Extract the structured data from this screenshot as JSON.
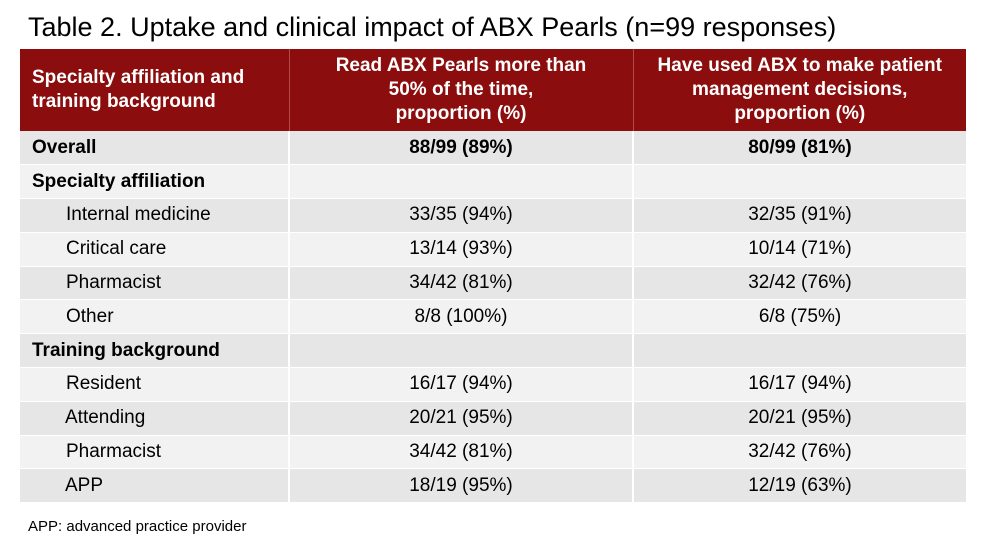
{
  "title": "Table 2. Uptake and clinical impact of ABX Pearls (n=99 responses)",
  "table": {
    "header": {
      "col1": [
        "Specialty affiliation and",
        "training background"
      ],
      "col2": [
        "Read ABX Pearls more than",
        "50% of the time,",
        "proportion (%)"
      ],
      "col3": [
        "Have used ABX to make patient",
        "management decisions,",
        "proportion (%)"
      ]
    },
    "rows": [
      {
        "label": "Overall",
        "read": "88/99 (89%)",
        "used": "80/99 (81%)"
      },
      {
        "label": "Specialty affiliation",
        "read": "",
        "used": ""
      },
      {
        "label": "Internal medicine",
        "read": "33/35 (94%)",
        "used": "32/35 (91%)"
      },
      {
        "label": "Critical care",
        "read": "13/14 (93%)",
        "used": "10/14 (71%)"
      },
      {
        "label": "Pharmacist",
        "read": "34/42 (81%)",
        "used": "32/42 (76%)"
      },
      {
        "label": "Other",
        "read": "8/8 (100%)",
        "used": "6/8 (75%)"
      },
      {
        "label": "Training background",
        "read": "",
        "used": ""
      },
      {
        "label": "Resident",
        "read": "16/17 (94%)",
        "used": "16/17 (94%)"
      },
      {
        "label": "Attending",
        "read": "20/21 (95%)",
        "used": "20/21 (95%)"
      },
      {
        "label": "Pharmacist",
        "read": "34/42 (81%)",
        "used": "32/42 (76%)"
      },
      {
        "label": "APP",
        "read": "18/19 (95%)",
        "used": "12/19 (63%)"
      }
    ]
  },
  "footnote": "APP: advanced practice provider",
  "colors": {
    "header_bg": "#8b0d0d",
    "row_shade_a": "#e7e6e6",
    "row_shade_b": "#f2f2f2"
  }
}
